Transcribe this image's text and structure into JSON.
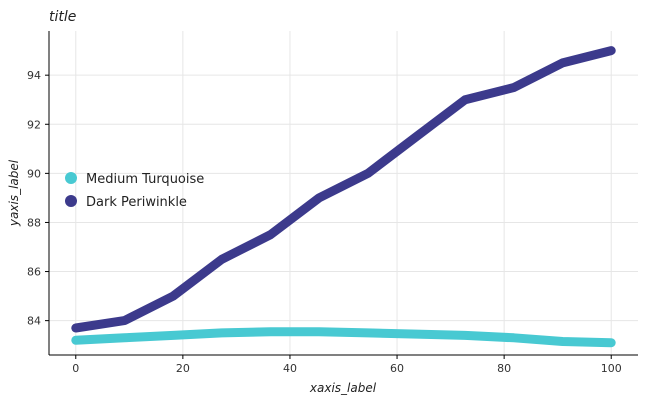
{
  "chart_data": {
    "type": "line",
    "title": "title",
    "xlabel": "xaxis_label",
    "ylabel": "yaxis_label",
    "xlim": [
      -5,
      105
    ],
    "ylim": [
      82.6,
      95.8
    ],
    "x_ticks": [
      0,
      20,
      40,
      60,
      80,
      100
    ],
    "y_ticks": [
      84,
      86,
      88,
      90,
      92,
      94
    ],
    "grid": true,
    "legend_position": "left",
    "series": [
      {
        "name": "Medium Turquoise",
        "color": "#48C9D2",
        "x": [
          0,
          9.09,
          18.18,
          27.27,
          36.36,
          45.45,
          54.55,
          63.64,
          72.73,
          81.82,
          90.91,
          100
        ],
        "y": [
          83.2,
          83.3,
          83.4,
          83.5,
          83.55,
          83.55,
          83.5,
          83.45,
          83.4,
          83.3,
          83.15,
          83.1
        ]
      },
      {
        "name": "Dark Periwinkle",
        "color": "#3C3A8C",
        "x": [
          0,
          9.09,
          18.18,
          27.27,
          36.36,
          45.45,
          54.55,
          63.64,
          72.73,
          81.82,
          90.91,
          100
        ],
        "y": [
          83.7,
          84.0,
          85.0,
          86.5,
          87.5,
          89.0,
          90.0,
          91.5,
          93.0,
          93.5,
          94.5,
          95.0
        ]
      }
    ]
  }
}
